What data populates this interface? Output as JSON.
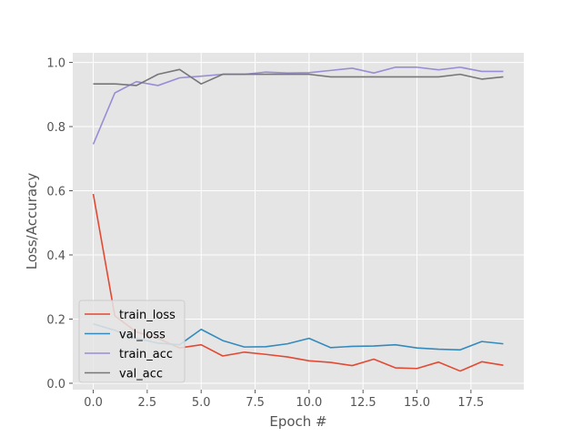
{
  "chart_data": {
    "type": "line",
    "title": "",
    "xlabel": "Epoch #",
    "ylabel": "Loss/Accuracy",
    "xlim": [
      -0.95,
      19.95
    ],
    "ylim": [
      -0.02,
      1.03
    ],
    "xticks": [
      0.0,
      2.5,
      5.0,
      7.5,
      10.0,
      12.5,
      15.0,
      17.5
    ],
    "xtick_labels": [
      "0.0",
      "2.5",
      "5.0",
      "7.5",
      "10.0",
      "12.5",
      "15.0",
      "17.5"
    ],
    "yticks": [
      0.0,
      0.2,
      0.4,
      0.6,
      0.8,
      1.0
    ],
    "ytick_labels": [
      "0.0",
      "0.2",
      "0.4",
      "0.6",
      "0.8",
      "1.0"
    ],
    "grid": true,
    "legend_position": "lower-left",
    "x": [
      0,
      1,
      2,
      3,
      4,
      5,
      6,
      7,
      8,
      9,
      10,
      11,
      12,
      13,
      14,
      15,
      16,
      17,
      18,
      19
    ],
    "series": [
      {
        "name": "train_loss",
        "color": "#E24A33",
        "values": [
          0.59,
          0.21,
          0.16,
          0.14,
          0.11,
          0.12,
          0.085,
          0.097,
          0.09,
          0.082,
          0.07,
          0.065,
          0.055,
          0.075,
          0.048,
          0.046,
          0.066,
          0.038,
          0.067,
          0.056
        ]
      },
      {
        "name": "val_loss",
        "color": "#348ABD",
        "values": [
          0.185,
          0.165,
          0.14,
          0.125,
          0.12,
          0.168,
          0.133,
          0.113,
          0.114,
          0.123,
          0.14,
          0.111,
          0.115,
          0.116,
          0.12,
          0.11,
          0.106,
          0.104,
          0.13,
          0.123
        ]
      },
      {
        "name": "train_acc",
        "color": "#988ED5",
        "values": [
          0.745,
          0.905,
          0.94,
          0.928,
          0.952,
          0.957,
          0.963,
          0.963,
          0.97,
          0.967,
          0.968,
          0.975,
          0.982,
          0.967,
          0.985,
          0.985,
          0.977,
          0.985,
          0.972,
          0.972
        ]
      },
      {
        "name": "val_acc",
        "color": "#777777",
        "values": [
          0.933,
          0.933,
          0.928,
          0.963,
          0.978,
          0.933,
          0.963,
          0.963,
          0.963,
          0.963,
          0.963,
          0.955,
          0.955,
          0.955,
          0.955,
          0.955,
          0.955,
          0.963,
          0.948,
          0.955
        ]
      }
    ]
  }
}
